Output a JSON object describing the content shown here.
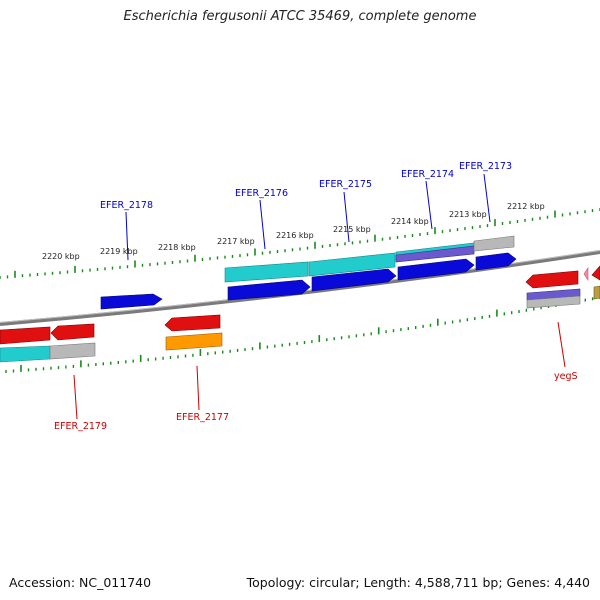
{
  "title": "Escherichia fergusonii ATCC 35469, complete genome",
  "footer": {
    "accession": "Accession: NC_011740",
    "topology": "Topology: circular; Length: 4,588,711 bp; Genes: 4,440"
  },
  "scale_labels": [
    "2220 kbp",
    "2219 kbp",
    "2218 kbp",
    "2217 kbp",
    "2216 kbp",
    "2215 kbp",
    "2214 kbp",
    "2213 kbp",
    "2212 kbp"
  ],
  "gene_labels": {
    "top": [
      "EFER_2178",
      "EFER_2176",
      "EFER_2175",
      "EFER_2174",
      "EFER_2173"
    ],
    "bottom": [
      "EFER_2179",
      "EFER_2177",
      "yegS"
    ]
  },
  "colors": {
    "label_top": "#0000cc",
    "label_bottom": "#cc0000",
    "backbone": "#7a7a7a",
    "ticks": "#1a8a1a",
    "cds_blue": "#0a0ad8",
    "cds_red": "#e01010",
    "cds_cyan": "#22cccc",
    "cds_orange": "#ff9900",
    "cds_grey": "#b8b8b8",
    "cds_purple": "#6a5acd",
    "cds_pink": "#ff88aa",
    "cds_olive": "#b8a040"
  }
}
